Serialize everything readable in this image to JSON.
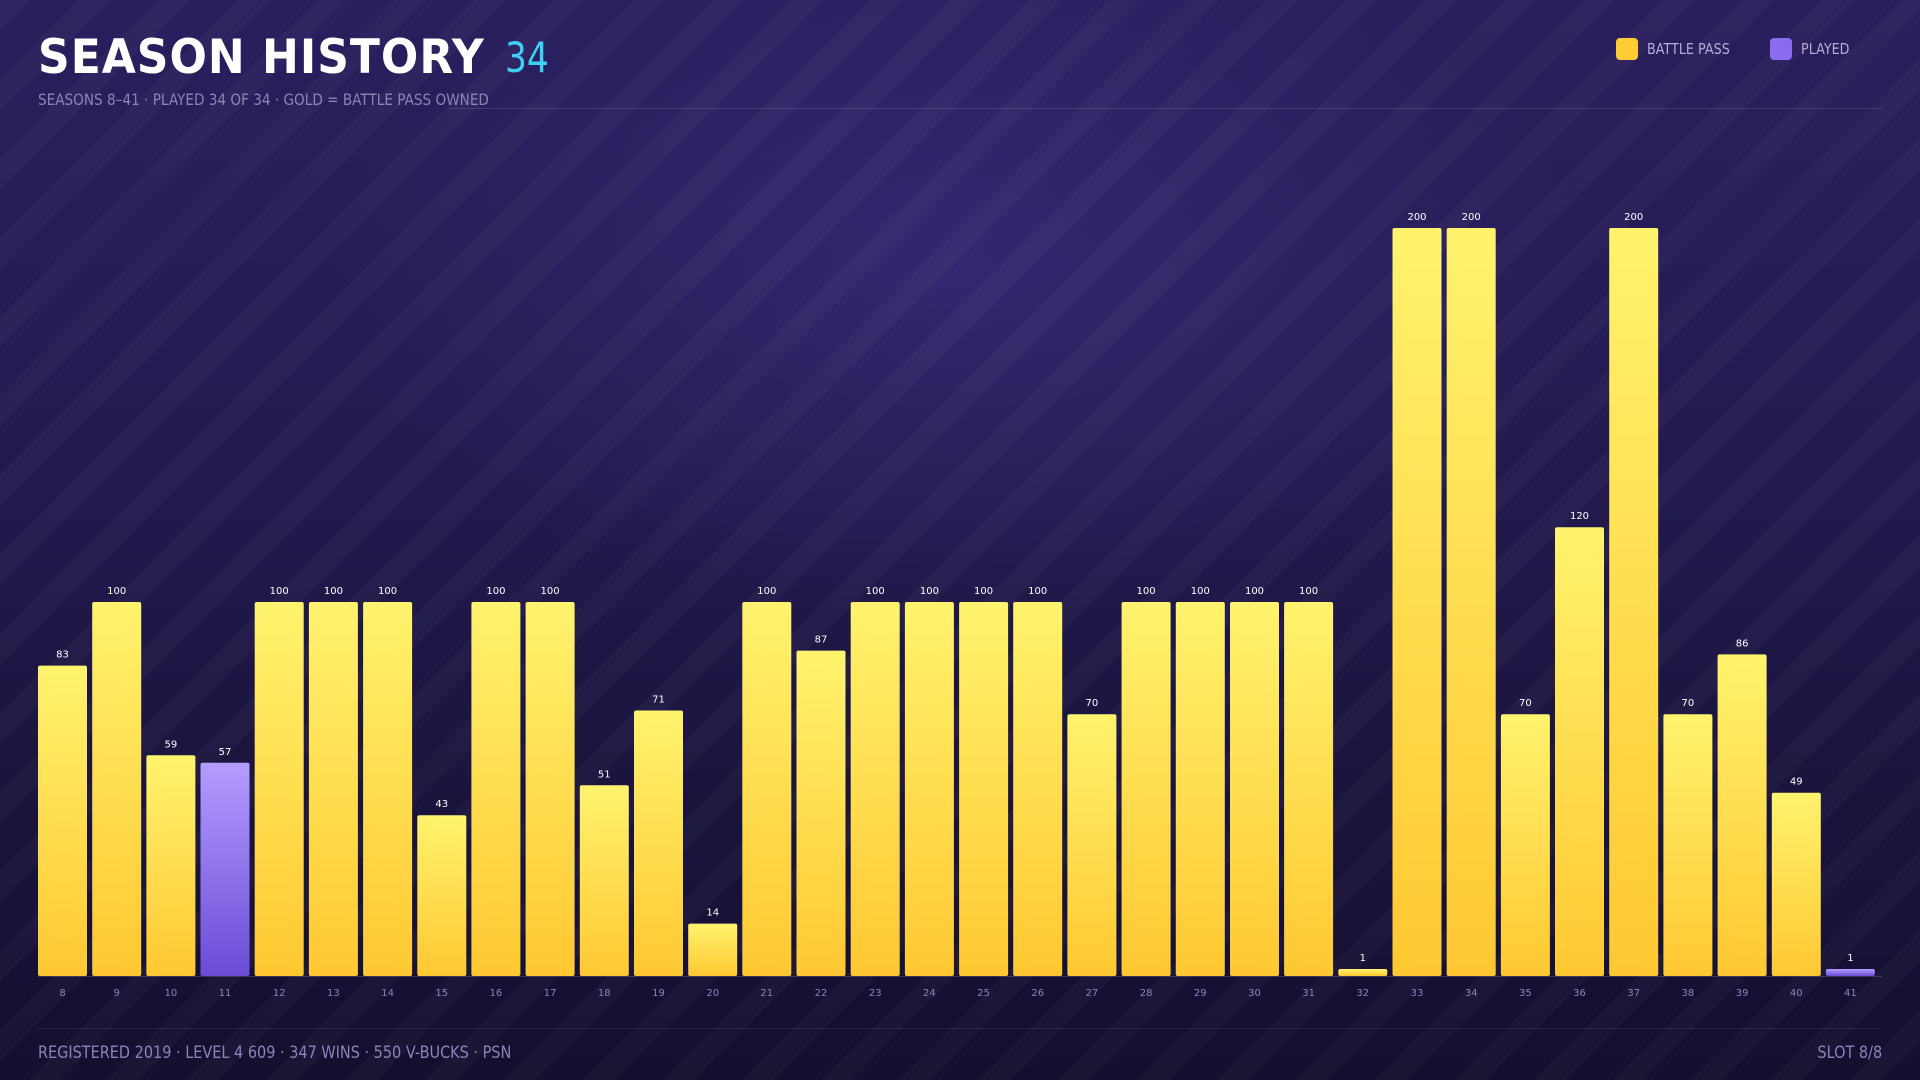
{
  "header": {
    "title": "SEASON HISTORY",
    "count": "34",
    "subtitle": "SEASONS 8–41 · PLAYED 34 OF 34 · GOLD = BATTLE PASS OWNED"
  },
  "legend": [
    {
      "label": "BATTLE PASS",
      "color": "#ffcc33"
    },
    {
      "label": "PLAYED",
      "color": "#8a6cf0"
    }
  ],
  "footer": {
    "left": "REGISTERED 2019 · LEVEL 4 609 · 347 WINS · 550 V-BUCKS · PSN",
    "right": "SLOT 8/8"
  },
  "colors": {
    "battle_pass_top": "#fff36e",
    "battle_pass_bottom": "#ffc832",
    "played_top": "#b49cff",
    "played_bottom": "#6a4cd6"
  },
  "chart_data": {
    "type": "bar",
    "categories": [
      "8",
      "9",
      "10",
      "11",
      "12",
      "13",
      "14",
      "15",
      "16",
      "17",
      "18",
      "19",
      "20",
      "21",
      "22",
      "23",
      "24",
      "25",
      "26",
      "27",
      "28",
      "29",
      "30",
      "31",
      "32",
      "33",
      "34",
      "35",
      "36",
      "37",
      "38",
      "39",
      "40",
      "41"
    ],
    "values": [
      83,
      100,
      59,
      57,
      100,
      100,
      100,
      43,
      100,
      100,
      51,
      71,
      14,
      100,
      87,
      100,
      100,
      100,
      100,
      70,
      100,
      100,
      100,
      100,
      1,
      200,
      200,
      70,
      120,
      200,
      70,
      86,
      49,
      1
    ],
    "battle_pass": [
      true,
      true,
      true,
      false,
      true,
      true,
      true,
      true,
      true,
      true,
      true,
      true,
      true,
      true,
      true,
      true,
      true,
      true,
      true,
      true,
      true,
      true,
      true,
      true,
      true,
      true,
      true,
      true,
      true,
      true,
      true,
      true,
      true,
      false
    ],
    "ylim": [
      0,
      200
    ],
    "grid": false,
    "legend_position": "top-right",
    "data_labels": true
  }
}
